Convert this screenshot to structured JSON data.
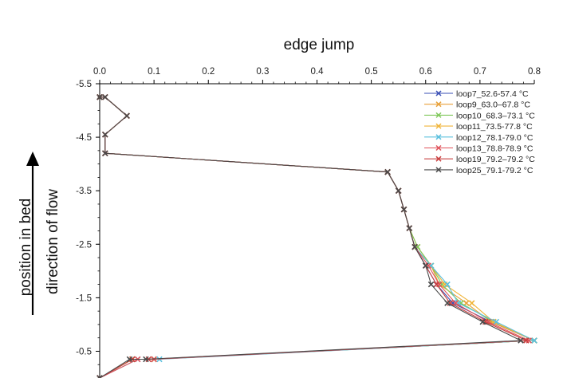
{
  "chart_data": {
    "type": "line",
    "xlabel": "edge jump",
    "ylabel": "position in bed",
    "ylabel2": "direction of flow",
    "xlim": [
      0,
      0.8
    ],
    "ylim": [
      -5.5,
      0
    ],
    "y_inverted": true,
    "x_axis_position": "top",
    "x_ticks": [
      "0.0",
      "0.1",
      "0.2",
      "0.3",
      "0.4",
      "0.5",
      "0.6",
      "0.7",
      "0.8"
    ],
    "y_ticks": [
      "-5.5",
      "-4.5",
      "-3.5",
      "-2.5",
      "-1.5",
      "-0.5"
    ],
    "grid": false,
    "legend_position": "top-right",
    "series": [
      {
        "name": "loop7_52.6-57.4 °C",
        "color": "#3a4fb5",
        "x": [
          0.0,
          0.01,
          0.05,
          0.01,
          0.01,
          0.53,
          0.55,
          0.56,
          0.57,
          0.58,
          0.6,
          0.62,
          0.65,
          0.72,
          0.8,
          0.1,
          0.06,
          0.0
        ],
        "y": [
          -5.25,
          -5.25,
          -4.9,
          -4.55,
          -4.2,
          -3.85,
          -3.5,
          -3.15,
          -2.8,
          -2.45,
          -2.1,
          -1.75,
          -1.4,
          -1.05,
          -0.7,
          -0.35,
          -0.35,
          0.0
        ]
      },
      {
        "name": "loop9_63.0–67.8 °C",
        "color": "#e8a13a",
        "x": [
          0.0,
          0.01,
          0.05,
          0.01,
          0.01,
          0.53,
          0.55,
          0.56,
          0.57,
          0.585,
          0.61,
          0.625,
          0.675,
          0.72,
          0.8,
          0.1,
          0.06,
          0.0
        ],
        "y": [
          -5.25,
          -5.25,
          -4.9,
          -4.55,
          -4.2,
          -3.85,
          -3.5,
          -3.15,
          -2.8,
          -2.45,
          -2.1,
          -1.75,
          -1.4,
          -1.05,
          -0.7,
          -0.35,
          -0.35,
          0.0
        ]
      },
      {
        "name": "loop10_68.3–73.1 °C",
        "color": "#7fc85a",
        "x": [
          0.0,
          0.01,
          0.05,
          0.01,
          0.01,
          0.53,
          0.55,
          0.56,
          0.57,
          0.585,
          0.61,
          0.63,
          0.665,
          0.725,
          0.8,
          0.1,
          0.06,
          0.0
        ],
        "y": [
          -5.25,
          -5.25,
          -4.9,
          -4.55,
          -4.2,
          -3.85,
          -3.5,
          -3.15,
          -2.8,
          -2.45,
          -2.1,
          -1.75,
          -1.4,
          -1.05,
          -0.7,
          -0.35,
          -0.35,
          0.0
        ]
      },
      {
        "name": "loop11_73.5-77.8 °C",
        "color": "#f0b53a",
        "x": [
          0.0,
          0.01,
          0.05,
          0.01,
          0.01,
          0.53,
          0.55,
          0.56,
          0.57,
          0.58,
          0.61,
          0.635,
          0.685,
          0.725,
          0.8,
          0.1,
          0.06,
          0.0
        ],
        "y": [
          -5.25,
          -5.25,
          -4.9,
          -4.55,
          -4.2,
          -3.85,
          -3.5,
          -3.15,
          -2.8,
          -2.45,
          -2.1,
          -1.75,
          -1.4,
          -1.05,
          -0.7,
          -0.35,
          -0.35,
          0.0
        ]
      },
      {
        "name": "loop12_78.1-79.0 °C",
        "color": "#5bc0de",
        "x": [
          0.0,
          0.01,
          0.05,
          0.01,
          0.01,
          0.53,
          0.55,
          0.56,
          0.57,
          0.58,
          0.61,
          0.64,
          0.66,
          0.73,
          0.8,
          0.11,
          0.07,
          0.0
        ],
        "y": [
          -5.25,
          -5.25,
          -4.9,
          -4.55,
          -4.2,
          -3.85,
          -3.5,
          -3.15,
          -2.8,
          -2.45,
          -2.1,
          -1.75,
          -1.4,
          -1.05,
          -0.7,
          -0.35,
          -0.35,
          0.0
        ]
      },
      {
        "name": "loop13_78.8-78.9 °C",
        "color": "#e0525a",
        "x": [
          0.0,
          0.01,
          0.05,
          0.01,
          0.01,
          0.53,
          0.55,
          0.56,
          0.57,
          0.58,
          0.605,
          0.625,
          0.655,
          0.715,
          0.79,
          0.1,
          0.07,
          0.0
        ],
        "y": [
          -5.25,
          -5.25,
          -4.9,
          -4.55,
          -4.2,
          -3.85,
          -3.5,
          -3.15,
          -2.8,
          -2.45,
          -2.1,
          -1.75,
          -1.4,
          -1.05,
          -0.7,
          -0.35,
          -0.35,
          0.0
        ]
      },
      {
        "name": "loop19_79.2–79.2 °C",
        "color": "#c94040",
        "x": [
          0.0,
          0.01,
          0.05,
          0.01,
          0.01,
          0.53,
          0.55,
          0.56,
          0.57,
          0.58,
          0.6,
          0.62,
          0.645,
          0.71,
          0.785,
          0.09,
          0.06,
          0.0
        ],
        "y": [
          -5.25,
          -5.25,
          -4.9,
          -4.55,
          -4.2,
          -3.85,
          -3.5,
          -3.15,
          -2.8,
          -2.45,
          -2.1,
          -1.75,
          -1.4,
          -1.05,
          -0.7,
          -0.35,
          -0.35,
          0.0
        ]
      },
      {
        "name": "loop25_79.1-79.2 °C",
        "color": "#4a4a4a",
        "x": [
          0.0,
          0.01,
          0.05,
          0.01,
          0.01,
          0.53,
          0.55,
          0.56,
          0.57,
          0.58,
          0.6,
          0.61,
          0.64,
          0.705,
          0.775,
          0.085,
          0.055,
          0.0
        ],
        "y": [
          -5.25,
          -5.25,
          -4.9,
          -4.55,
          -4.2,
          -3.85,
          -3.5,
          -3.15,
          -2.8,
          -2.45,
          -2.1,
          -1.75,
          -1.4,
          -1.05,
          -0.7,
          -0.35,
          -0.35,
          0.0
        ]
      }
    ]
  }
}
